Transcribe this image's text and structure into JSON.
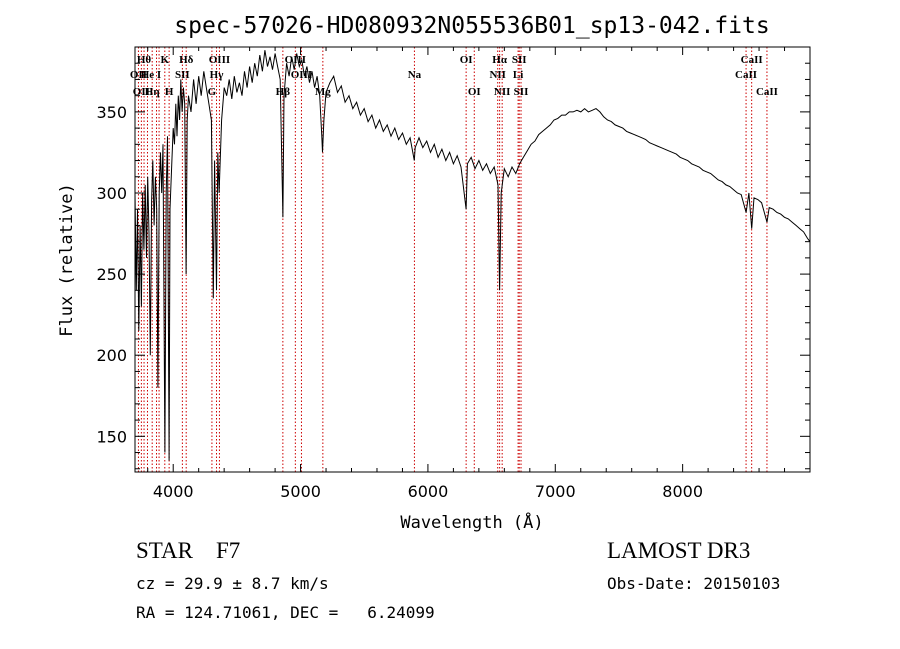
{
  "chart_data": {
    "type": "line",
    "title": "spec-57026-HD080932N055536B01_sp13-042.fits",
    "xlabel": "Wavelength (Å)",
    "ylabel": "Flux (relative)",
    "xlim": [
      3700,
      9000
    ],
    "ylim": [
      128,
      390
    ],
    "x_ticks": [
      4000,
      5000,
      6000,
      7000,
      8000
    ],
    "y_ticks": [
      150,
      200,
      250,
      300,
      350
    ],
    "line_color": "#000000",
    "marker_color": "#cc0000",
    "series": [
      {
        "name": "flux",
        "points": [
          [
            3700,
            300
          ],
          [
            3710,
            240
          ],
          [
            3720,
            290
          ],
          [
            3730,
            215
          ],
          [
            3740,
            280
          ],
          [
            3750,
            230
          ],
          [
            3760,
            300
          ],
          [
            3770,
            265
          ],
          [
            3780,
            305
          ],
          [
            3790,
            260
          ],
          [
            3800,
            310
          ],
          [
            3810,
            275
          ],
          [
            3820,
            200
          ],
          [
            3830,
            295
          ],
          [
            3840,
            320
          ],
          [
            3850,
            280
          ],
          [
            3860,
            310
          ],
          [
            3870,
            290
          ],
          [
            3880,
            180
          ],
          [
            3890,
            300
          ],
          [
            3900,
            325
          ],
          [
            3910,
            300
          ],
          [
            3920,
            330
          ],
          [
            3935,
            140
          ],
          [
            3945,
            300
          ],
          [
            3955,
            335
          ],
          [
            3968,
            135
          ],
          [
            3975,
            290
          ],
          [
            3990,
            320
          ],
          [
            4000,
            340
          ],
          [
            4010,
            330
          ],
          [
            4020,
            355
          ],
          [
            4030,
            335
          ],
          [
            4040,
            360
          ],
          [
            4050,
            345
          ],
          [
            4060,
            370
          ],
          [
            4070,
            350
          ],
          [
            4080,
            365
          ],
          [
            4090,
            355
          ],
          [
            4101,
            250
          ],
          [
            4110,
            345
          ],
          [
            4120,
            360
          ],
          [
            4140,
            350
          ],
          [
            4160,
            370
          ],
          [
            4180,
            355
          ],
          [
            4200,
            372
          ],
          [
            4220,
            360
          ],
          [
            4240,
            375
          ],
          [
            4260,
            365
          ],
          [
            4280,
            355
          ],
          [
            4300,
            345
          ],
          [
            4315,
            235
          ],
          [
            4325,
            320
          ],
          [
            4340,
            240
          ],
          [
            4350,
            325
          ],
          [
            4360,
            300
          ],
          [
            4380,
            345
          ],
          [
            4400,
            365
          ],
          [
            4420,
            360
          ],
          [
            4440,
            370
          ],
          [
            4460,
            358
          ],
          [
            4480,
            372
          ],
          [
            4500,
            362
          ],
          [
            4520,
            368
          ],
          [
            4540,
            360
          ],
          [
            4560,
            375
          ],
          [
            4580,
            365
          ],
          [
            4600,
            378
          ],
          [
            4620,
            368
          ],
          [
            4640,
            380
          ],
          [
            4660,
            372
          ],
          [
            4680,
            385
          ],
          [
            4700,
            375
          ],
          [
            4720,
            388
          ],
          [
            4740,
            378
          ],
          [
            4760,
            384
          ],
          [
            4780,
            376
          ],
          [
            4800,
            386
          ],
          [
            4820,
            378
          ],
          [
            4840,
            370
          ],
          [
            4861,
            285
          ],
          [
            4870,
            360
          ],
          [
            4890,
            380
          ],
          [
            4910,
            372
          ],
          [
            4930,
            384
          ],
          [
            4950,
            376
          ],
          [
            4970,
            386
          ],
          [
            4990,
            378
          ],
          [
            5010,
            382
          ],
          [
            5030,
            372
          ],
          [
            5050,
            378
          ],
          [
            5070,
            368
          ],
          [
            5090,
            375
          ],
          [
            5110,
            365
          ],
          [
            5130,
            372
          ],
          [
            5150,
            360
          ],
          [
            5167,
            335
          ],
          [
            5172,
            325
          ],
          [
            5183,
            345
          ],
          [
            5200,
            362
          ],
          [
            5230,
            368
          ],
          [
            5260,
            372
          ],
          [
            5290,
            362
          ],
          [
            5320,
            366
          ],
          [
            5350,
            356
          ],
          [
            5380,
            360
          ],
          [
            5410,
            352
          ],
          [
            5440,
            356
          ],
          [
            5470,
            348
          ],
          [
            5500,
            352
          ],
          [
            5530,
            344
          ],
          [
            5560,
            348
          ],
          [
            5590,
            340
          ],
          [
            5620,
            345
          ],
          [
            5650,
            338
          ],
          [
            5680,
            342
          ],
          [
            5710,
            335
          ],
          [
            5740,
            340
          ],
          [
            5770,
            333
          ],
          [
            5800,
            337
          ],
          [
            5830,
            330
          ],
          [
            5860,
            334
          ],
          [
            5893,
            320
          ],
          [
            5900,
            328
          ],
          [
            5930,
            334
          ],
          [
            5960,
            328
          ],
          [
            5990,
            332
          ],
          [
            6020,
            325
          ],
          [
            6050,
            330
          ],
          [
            6080,
            322
          ],
          [
            6110,
            327
          ],
          [
            6140,
            320
          ],
          [
            6170,
            325
          ],
          [
            6200,
            318
          ],
          [
            6230,
            323
          ],
          [
            6260,
            316
          ],
          [
            6300,
            290
          ],
          [
            6310,
            318
          ],
          [
            6340,
            322
          ],
          [
            6370,
            315
          ],
          [
            6400,
            320
          ],
          [
            6430,
            314
          ],
          [
            6460,
            318
          ],
          [
            6490,
            312
          ],
          [
            6520,
            316
          ],
          [
            6550,
            305
          ],
          [
            6563,
            240
          ],
          [
            6575,
            300
          ],
          [
            6600,
            315
          ],
          [
            6630,
            310
          ],
          [
            6660,
            316
          ],
          [
            6690,
            312
          ],
          [
            6720,
            318
          ],
          [
            6750,
            322
          ],
          [
            6780,
            326
          ],
          [
            6810,
            330
          ],
          [
            6840,
            332
          ],
          [
            6870,
            336
          ],
          [
            6900,
            338
          ],
          [
            6930,
            340
          ],
          [
            6960,
            342
          ],
          [
            6990,
            345
          ],
          [
            7020,
            346
          ],
          [
            7050,
            348
          ],
          [
            7080,
            348
          ],
          [
            7110,
            350
          ],
          [
            7140,
            350
          ],
          [
            7170,
            351
          ],
          [
            7200,
            350
          ],
          [
            7230,
            352
          ],
          [
            7260,
            350
          ],
          [
            7290,
            351
          ],
          [
            7320,
            352
          ],
          [
            7350,
            350
          ],
          [
            7380,
            347
          ],
          [
            7410,
            345
          ],
          [
            7440,
            344
          ],
          [
            7470,
            342
          ],
          [
            7500,
            341
          ],
          [
            7530,
            340
          ],
          [
            7560,
            338
          ],
          [
            7590,
            337
          ],
          [
            7620,
            336
          ],
          [
            7650,
            335
          ],
          [
            7680,
            334
          ],
          [
            7710,
            333
          ],
          [
            7740,
            331
          ],
          [
            7770,
            330
          ],
          [
            7800,
            329
          ],
          [
            7830,
            328
          ],
          [
            7860,
            327
          ],
          [
            7890,
            326
          ],
          [
            7920,
            325
          ],
          [
            7950,
            324
          ],
          [
            7980,
            322
          ],
          [
            8010,
            321
          ],
          [
            8040,
            320
          ],
          [
            8070,
            318
          ],
          [
            8100,
            317
          ],
          [
            8130,
            316
          ],
          [
            8160,
            314
          ],
          [
            8190,
            313
          ],
          [
            8220,
            312
          ],
          [
            8250,
            310
          ],
          [
            8280,
            308
          ],
          [
            8310,
            307
          ],
          [
            8340,
            305
          ],
          [
            8370,
            304
          ],
          [
            8400,
            302
          ],
          [
            8430,
            300
          ],
          [
            8460,
            299
          ],
          [
            8498,
            288
          ],
          [
            8520,
            300
          ],
          [
            8542,
            278
          ],
          [
            8560,
            297
          ],
          [
            8590,
            296
          ],
          [
            8620,
            294
          ],
          [
            8662,
            282
          ],
          [
            8680,
            291
          ],
          [
            8710,
            290
          ],
          [
            8740,
            288
          ],
          [
            8770,
            287
          ],
          [
            8800,
            285
          ],
          [
            8830,
            284
          ],
          [
            8860,
            282
          ],
          [
            8890,
            280
          ],
          [
            8920,
            278
          ],
          [
            8950,
            276
          ],
          [
            8980,
            272
          ],
          [
            9000,
            270
          ]
        ]
      }
    ],
    "lines": [
      {
        "wl": 3727,
        "label": "OII",
        "row": 2
      },
      {
        "wl": 3750,
        "label": "OII",
        "row": 3
      },
      {
        "wl": 3771,
        "label": "Hθ",
        "row": 1
      },
      {
        "wl": 3798,
        "label": "He",
        "row": 2
      },
      {
        "wl": 3835,
        "label": "Hη",
        "row": 3
      },
      {
        "wl": 3869,
        "label": "",
        "row": 0
      },
      {
        "wl": 3889,
        "label": "I",
        "row": 2
      },
      {
        "wl": 3934,
        "label": "K",
        "row": 1
      },
      {
        "wl": 3968,
        "label": "H",
        "row": 3
      },
      {
        "wl": 4072,
        "label": "SII",
        "row": 2
      },
      {
        "wl": 4102,
        "label": "Hδ",
        "row": 1
      },
      {
        "wl": 4304,
        "label": "G",
        "row": 3
      },
      {
        "wl": 4340,
        "label": "Hγ",
        "row": 2
      },
      {
        "wl": 4363,
        "label": "OIII",
        "row": 1
      },
      {
        "wl": 4861,
        "label": "Hβ",
        "row": 3
      },
      {
        "wl": 4959,
        "label": "OIII",
        "row": 1
      },
      {
        "wl": 5007,
        "label": "OIII",
        "row": 2
      },
      {
        "wl": 5175,
        "label": "Mg",
        "row": 3
      },
      {
        "wl": 5894,
        "label": "Na",
        "row": 2
      },
      {
        "wl": 6300,
        "label": "OI",
        "row": 1
      },
      {
        "wl": 6364,
        "label": "OI",
        "row": 3
      },
      {
        "wl": 6548,
        "label": "NII",
        "row": 2
      },
      {
        "wl": 6563,
        "label": "Hα",
        "row": 1
      },
      {
        "wl": 6583,
        "label": "NII",
        "row": 3
      },
      {
        "wl": 6708,
        "label": "Li",
        "row": 2
      },
      {
        "wl": 6717,
        "label": "SII",
        "row": 1
      },
      {
        "wl": 6731,
        "label": "SII",
        "row": 3
      },
      {
        "wl": 8498,
        "label": "CaII",
        "row": 2
      },
      {
        "wl": 8542,
        "label": "CaII",
        "row": 1
      },
      {
        "wl": 8662,
        "label": "CaII",
        "row": 3
      }
    ]
  },
  "info": {
    "class_text": "STAR    F7",
    "survey": "LAMOST DR3",
    "cz": "cz = 29.9 ± 8.7 km/s",
    "obs_date": "Obs-Date: 20150103",
    "radec": "RA = 124.71061, DEC =   6.24099"
  }
}
